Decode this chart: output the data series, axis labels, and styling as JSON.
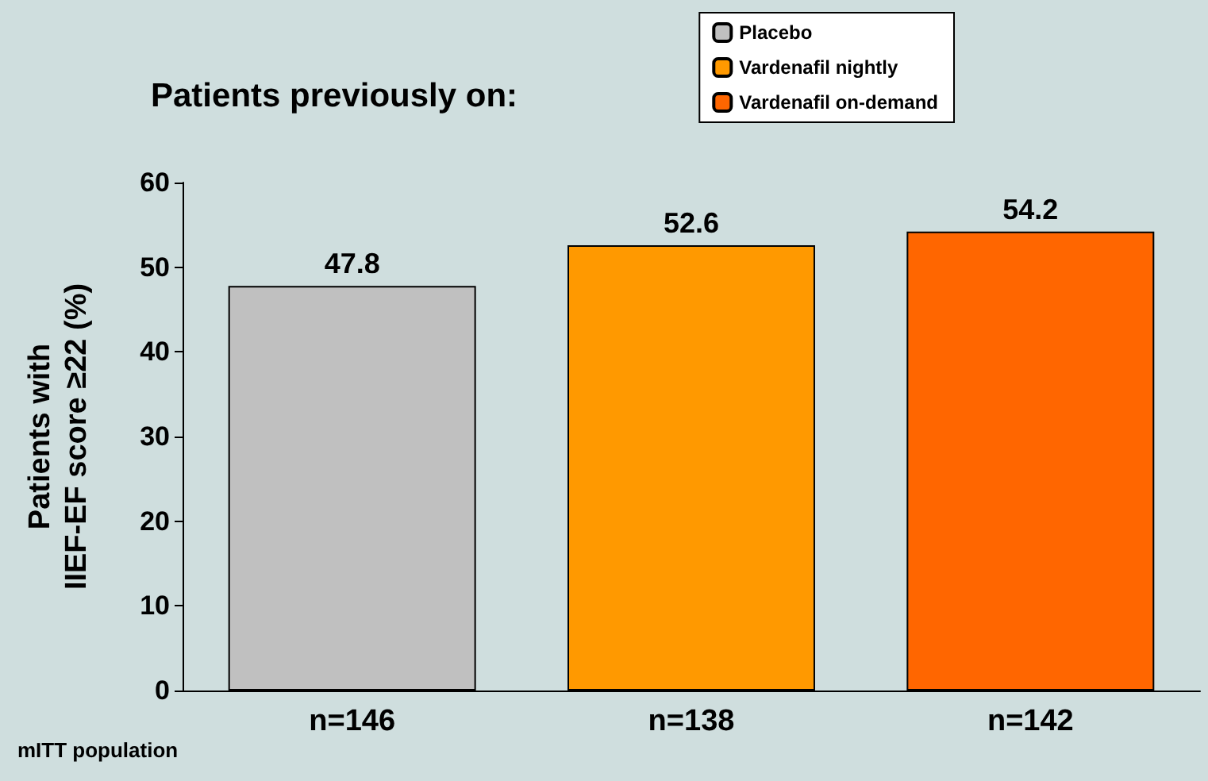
{
  "chart_data": {
    "type": "bar",
    "legend_title": "Patients previously on:",
    "ylabel": "Patients with\nIIEF-EF score ≥22 (%)",
    "categories": [
      "n=146",
      "n=138",
      "n=142"
    ],
    "series": [
      {
        "name": "Placebo",
        "color": "#c0c0c0",
        "values": [
          47.8,
          null,
          null
        ]
      },
      {
        "name": "Vardenafil nightly",
        "color": "#ff9900",
        "values": [
          null,
          52.6,
          null
        ]
      },
      {
        "name": "Vardenafil on-demand",
        "color": "#ff6600",
        "values": [
          null,
          null,
          54.2
        ]
      }
    ],
    "stacked": true,
    "ylim": [
      0,
      60
    ],
    "yticks": [
      0,
      10,
      20,
      30,
      40,
      50,
      60
    ],
    "grid": false,
    "legend": "top right",
    "data_labels": true,
    "annotations": [
      "mITT population"
    ]
  }
}
